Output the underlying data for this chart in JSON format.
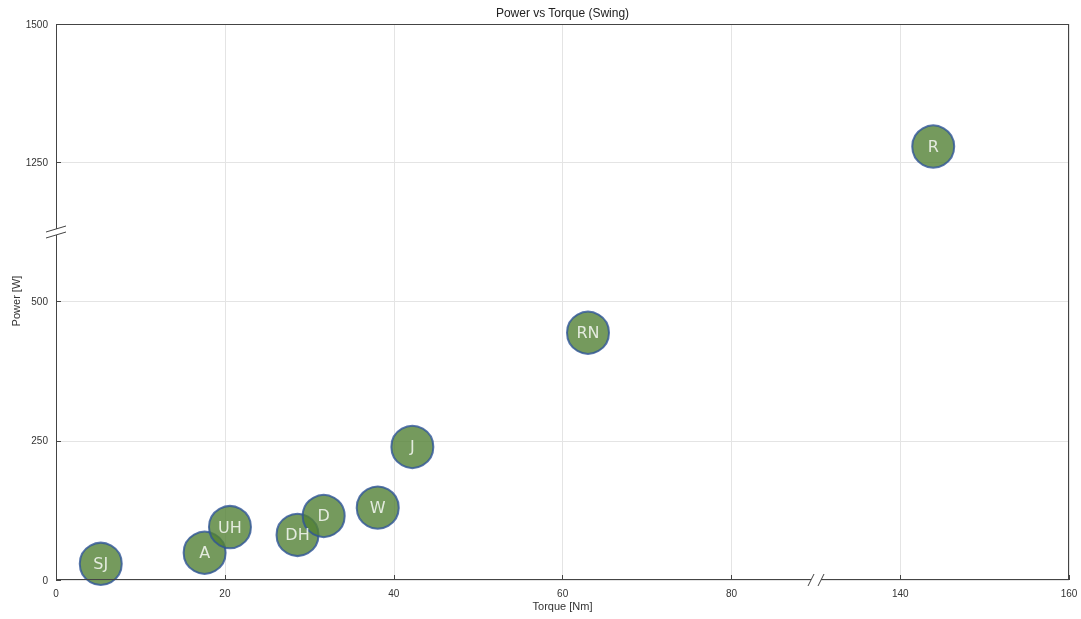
{
  "chart_data": [
    {
      "type": "scatter",
      "title": "Power vs Torque (Swing)",
      "xlabel": "Torque [Nm]",
      "ylabel": "Power [W]",
      "xlim": [
        0,
        90
      ],
      "xticks": [
        0,
        20,
        40,
        60,
        80
      ],
      "ylim": [
        1125,
        1500
      ],
      "yticks": [
        1250,
        1500
      ],
      "grid": true,
      "tick_labels": "y"
    },
    {
      "type": "scatter",
      "xlim": [
        130,
        160
      ],
      "xticks": [
        140,
        160
      ],
      "ylim": [
        1125,
        1500
      ],
      "yticks": [
        1250,
        1500
      ],
      "grid": true,
      "tick_labels": false,
      "marker": "circle",
      "series": [
        {
          "name": "R",
          "color": "#538135",
          "x": [
            143.9
          ],
          "values": [
            1279
          ]
        }
      ]
    },
    {
      "type": "scatter",
      "xlim": [
        0,
        90
      ],
      "xticks": [
        0,
        20,
        40,
        60,
        80
      ],
      "ylim": [
        0,
        625
      ],
      "yticks": [
        0,
        250,
        500
      ],
      "grid": true,
      "marker": "circle",
      "series": [
        {
          "name": "SJ",
          "color": "#538135",
          "x": [
            5.3
          ],
          "values": [
            29
          ]
        },
        {
          "name": "A",
          "color": "#538135",
          "x": [
            17.6
          ],
          "values": [
            49
          ]
        },
        {
          "name": "UH",
          "color": "#538135",
          "x": [
            20.6
          ],
          "values": [
            95
          ]
        },
        {
          "name": "DH",
          "color": "#538135",
          "x": [
            28.6
          ],
          "values": [
            81
          ]
        },
        {
          "name": "D",
          "color": "#538135",
          "x": [
            31.7
          ],
          "values": [
            115
          ]
        },
        {
          "name": "W",
          "color": "#538135",
          "x": [
            38.1
          ],
          "values": [
            130
          ]
        },
        {
          "name": "J",
          "color": "#538135",
          "x": [
            42.2
          ],
          "values": [
            239
          ]
        },
        {
          "name": "RN",
          "color": "#538135",
          "x": [
            63
          ],
          "values": [
            444
          ]
        }
      ]
    },
    {
      "type": "scatter",
      "xlim": [
        130,
        160
      ],
      "xticks": [
        140,
        160
      ],
      "ylim": [
        0,
        625
      ],
      "yticks": [
        0,
        250,
        500
      ],
      "grid": true,
      "tick_labels": "x"
    }
  ]
}
